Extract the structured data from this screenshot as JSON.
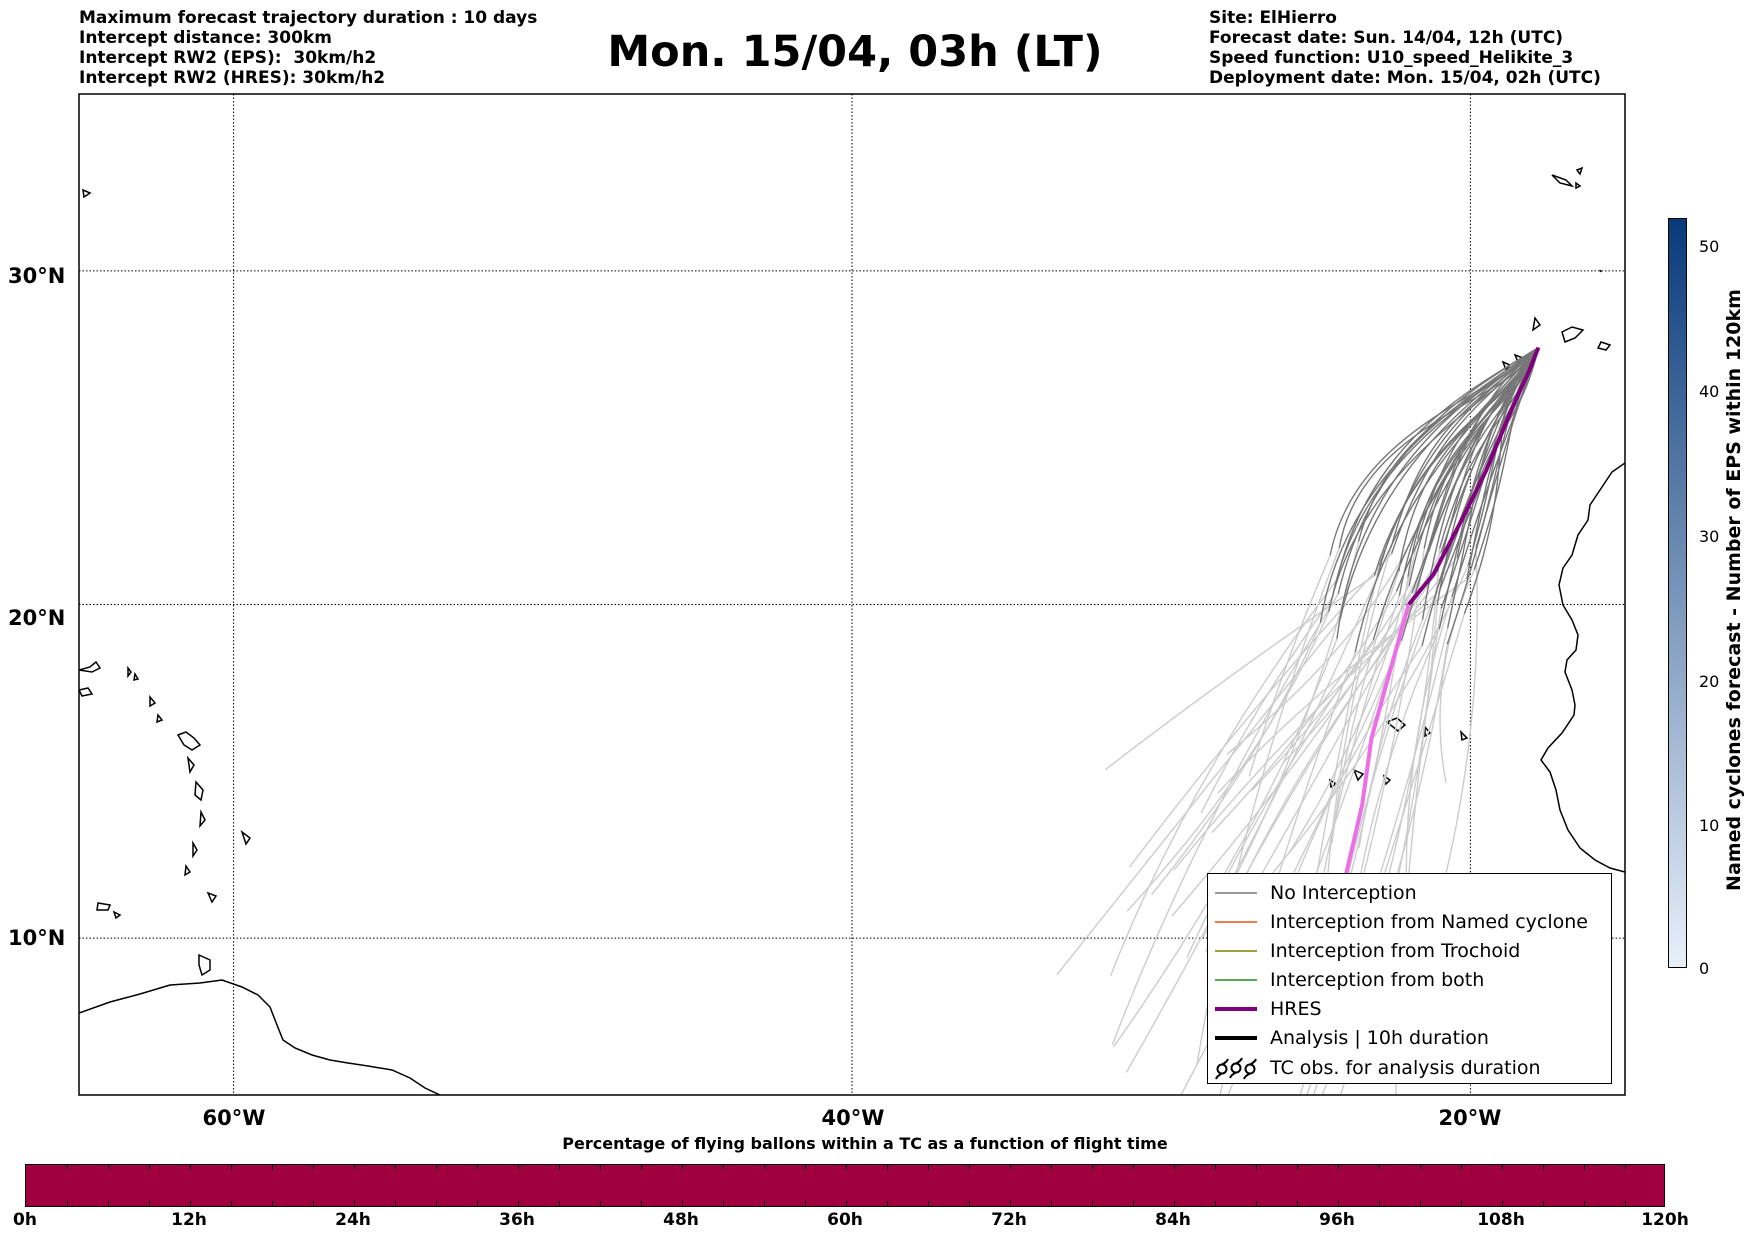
{
  "header": {
    "left_lines": [
      "Maximum forecast trajectory duration : 10 days",
      "Intercept distance: 300km",
      "Intercept RW2 (EPS):  30km/h2",
      "Intercept RW2 (HRES): 30km/h2"
    ],
    "right_lines": [
      "Site: ElHierro",
      "Forecast date: Sun. 14/04, 12h (UTC)",
      "Speed function: U10_speed_Helikite_3",
      "Deployment date: Mon. 15/04, 02h (UTC)"
    ],
    "title": "Mon. 15/04, 03h (LT)"
  },
  "map": {
    "lat_labels": [
      "30°N",
      "20°N",
      "10°N"
    ],
    "lon_labels": [
      "60°W",
      "40°W",
      "20°W"
    ],
    "grid_lats": [
      30,
      20,
      10
    ],
    "grid_lons": [
      -60,
      -40,
      -20
    ],
    "extent": {
      "lon_min": -65,
      "lon_max": -15,
      "lat_min": 5.3,
      "lat_max": 35.3
    },
    "colors": {
      "no_interception": "#777777",
      "eps_light": "#cccccc",
      "named_cyclone": "#e8541c",
      "trochoid": "#808000",
      "both": "#228b22",
      "hres_early": "#800080",
      "hres_late": "#ee6ee8",
      "analysis": "#000000",
      "coast": "#000000"
    }
  },
  "legend": {
    "items": [
      {
        "label": "No Interception",
        "symbol": "thin-gray-line"
      },
      {
        "label": "Interception from Named cyclone",
        "symbol": "thin-orange-line"
      },
      {
        "label": "Interception from Trochoid",
        "symbol": "thin-olive-line"
      },
      {
        "label": "Interception from both",
        "symbol": "thin-green-line"
      },
      {
        "label": "HRES",
        "symbol": "thick-purple-line"
      },
      {
        "label": "Analysis | 10h duration",
        "symbol": "thick-black-line"
      },
      {
        "label": "TC obs. for analysis duration",
        "symbol": "cyclone-symbols"
      }
    ]
  },
  "colorbar_right": {
    "label": "Named cyclones forecast - Number of EPS within 120km",
    "ticks": [
      "0",
      "10",
      "20",
      "30",
      "40",
      "50"
    ],
    "max": 52,
    "color_low": "#e8f0fa",
    "color_high": "#083a7a"
  },
  "colorbar_bottom": {
    "title": "Percentage of flying ballons within a TC as a function of flight time",
    "ticks": [
      "0h",
      "12h",
      "24h",
      "36h",
      "48h",
      "60h",
      "72h",
      "84h",
      "96h",
      "108h",
      "120h"
    ],
    "color": "#a0003f"
  },
  "chart_data": {
    "type": "map-trajectories",
    "hres_track": [
      [
        -17.8,
        27.7
      ],
      [
        -18.1,
        27.0
      ],
      [
        -18.6,
        26.0
      ],
      [
        -19.5,
        24.0
      ],
      [
        -20.3,
        22.5
      ],
      [
        -21.2,
        20.9
      ],
      [
        -22.0,
        20.0
      ],
      [
        -22.6,
        18.0
      ],
      [
        -23.2,
        16.0
      ],
      [
        -23.5,
        14.0
      ],
      [
        -24.0,
        12.0
      ],
      [
        -24.4,
        10.0
      ],
      [
        -24.8,
        8.0
      ]
    ],
    "hres_late_from_index": 6
  }
}
